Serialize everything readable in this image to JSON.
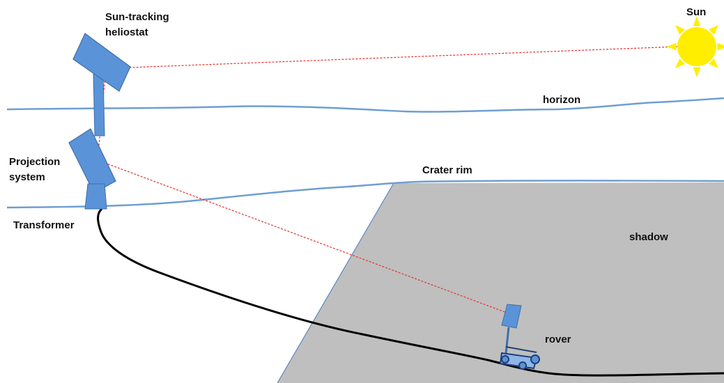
{
  "labels": {
    "sun": "Sun",
    "heliostat": [
      "Sun-tracking",
      "heliostat"
    ],
    "horizon": "horizon",
    "projection": [
      "Projection",
      "system"
    ],
    "crater_rim": "Crater rim",
    "transformer": "Transformer",
    "shadow": "shadow",
    "rover": "rover"
  },
  "colors": {
    "sun": "#ffee00",
    "sun_rays": "#ffee00",
    "terrain_line": "#6f9ed2",
    "mirror_fill": "#5b93d8",
    "mirror_stroke": "#3f6fa8",
    "shadow_fill": "#bfbfbf",
    "shadow_edge": "#5a88c2",
    "laser": "#e83030",
    "cable": "#000000",
    "background": "#ffffff"
  }
}
